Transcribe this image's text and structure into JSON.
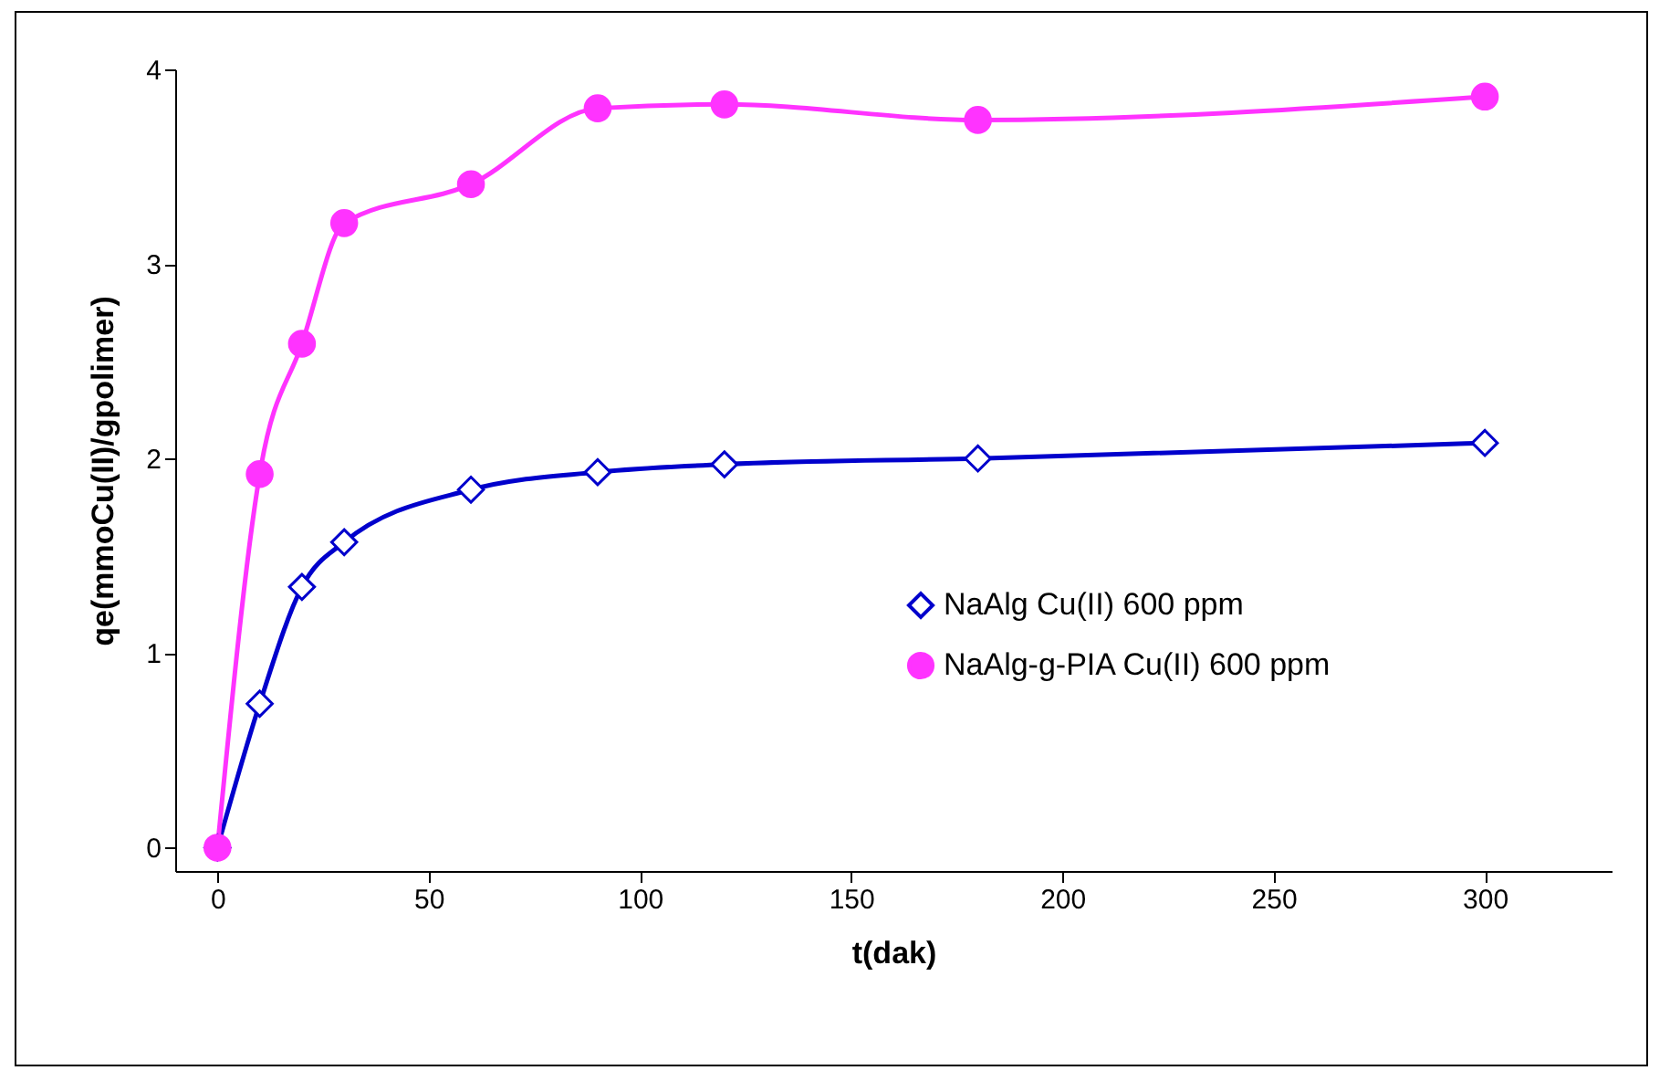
{
  "chart_data": {
    "type": "line",
    "xlabel": "t(dak)",
    "ylabel": "qe(mmoCu(II)/gpolimer)",
    "xlim": [
      -10,
      330
    ],
    "xticks": [
      0,
      50,
      100,
      150,
      200,
      250,
      300
    ],
    "ylim": [
      -0.12,
      4
    ],
    "yticks": [
      0,
      1,
      2,
      3,
      4
    ],
    "legend": "right",
    "grid": false,
    "line_style": "solid",
    "series": [
      {
        "name": "NaAlg Cu(II) 600 ppm",
        "color": "#0000cc",
        "marker": "diamond",
        "x": [
          0,
          10,
          20,
          30,
          60,
          90,
          120,
          180,
          300
        ],
        "values": [
          0,
          0.74,
          1.34,
          1.57,
          1.84,
          1.93,
          1.97,
          2.0,
          2.08
        ]
      },
      {
        "name": "NaAlg-g-PIA Cu(II)  600 ppm",
        "color": "#ff33ff",
        "marker": "circle",
        "x": [
          0,
          10,
          20,
          30,
          60,
          90,
          120,
          180,
          300
        ],
        "values": [
          0,
          1.92,
          2.59,
          3.21,
          3.41,
          3.8,
          3.82,
          3.74,
          3.86
        ]
      }
    ]
  }
}
